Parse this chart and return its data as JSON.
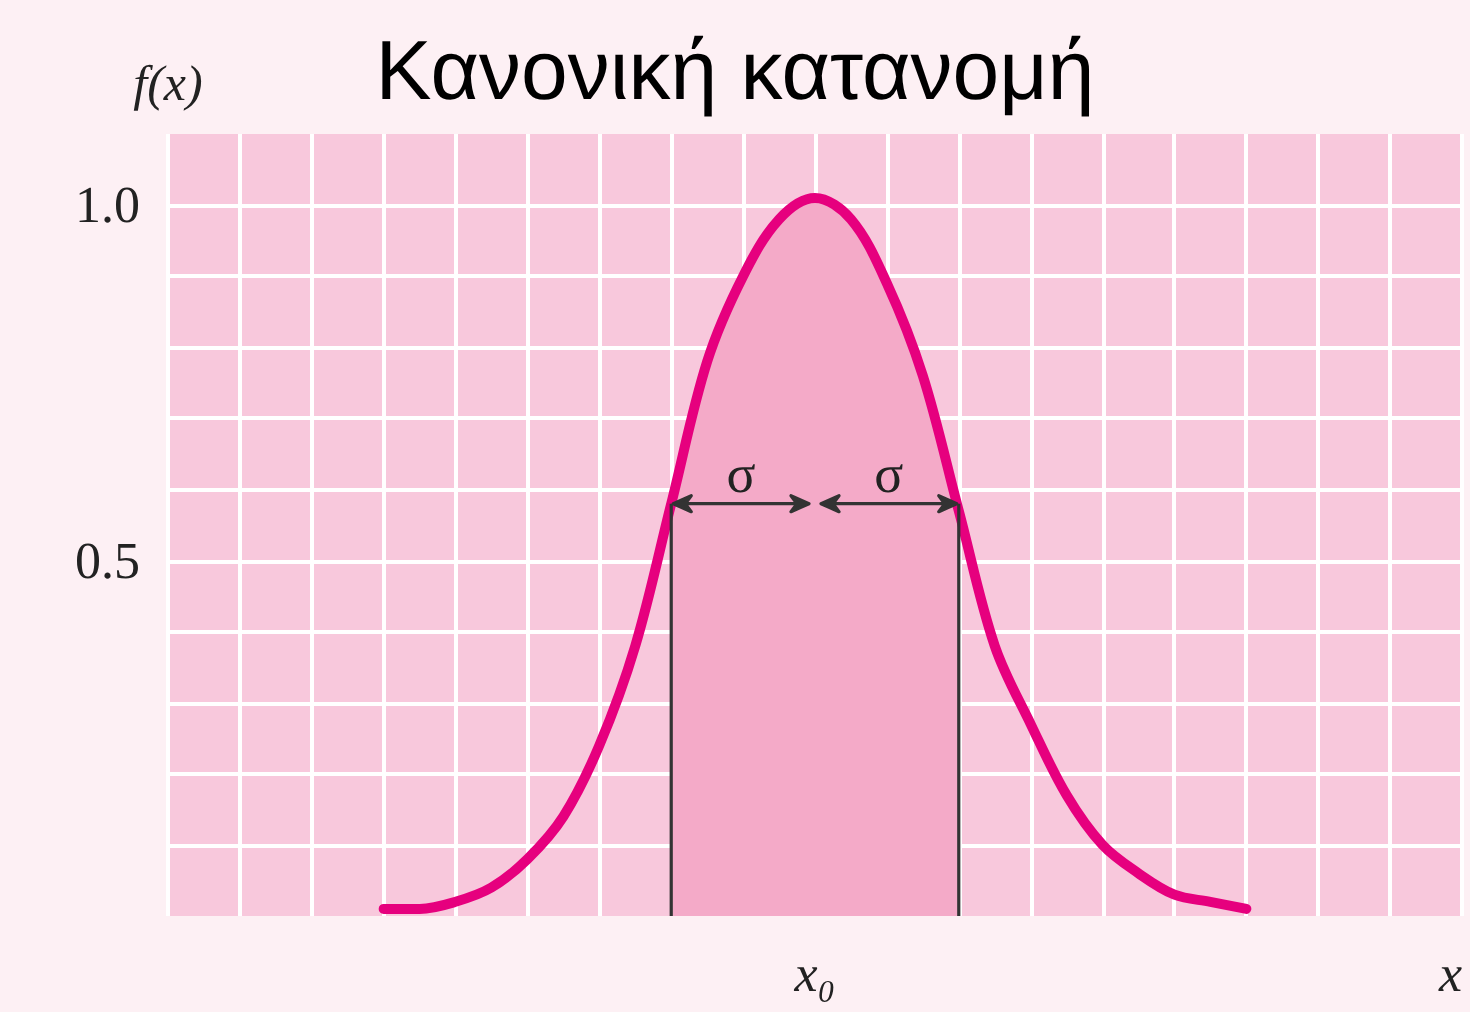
{
  "chart_data": {
    "type": "line",
    "title": "Κανονική κατανομή",
    "xlabel": "x",
    "ylabel": "f(x)",
    "categories": [
      null,
      null,
      null,
      null,
      null,
      null,
      null,
      null,
      null,
      null,
      null,
      null,
      null,
      null,
      null,
      null,
      null,
      null,
      "x₀",
      null,
      null,
      null,
      null,
      null,
      null,
      null,
      null,
      null,
      null,
      null,
      null,
      null,
      null,
      null,
      null,
      null,
      null
    ],
    "series": [
      {
        "color": "#e6007e",
        "values": [
          null,
          null,
          null,
          null,
          null,
          null,
          0.01,
          0.01,
          0.02,
          0.04,
          0.08,
          0.14,
          0.24,
          0.38,
          0.58,
          0.78,
          0.9,
          0.98,
          1.01,
          0.98,
          0.89,
          0.76,
          0.57,
          0.38,
          0.27,
          0.17,
          0.1,
          0.06,
          0.03,
          0.02,
          0.01,
          null,
          null,
          null,
          null,
          null,
          null
        ]
      },
      {
        "type": "area",
        "color": "#f4aac8",
        "values": [
          null,
          null,
          null,
          null,
          null,
          null,
          null,
          null,
          null,
          null,
          null,
          null,
          null,
          null,
          0.58,
          0.78,
          0.9,
          0.98,
          1.01,
          0.98,
          0.89,
          0.76,
          0.57,
          null,
          null,
          null,
          null,
          null,
          null,
          null,
          null,
          null,
          null,
          null,
          null,
          null,
          null
        ]
      }
    ],
    "ylim": [
      0,
      1.1
    ],
    "yticks": [
      {
        "value": 0.1,
        "label": null
      },
      {
        "value": 0.2,
        "label": null
      },
      {
        "value": 0.3,
        "label": null
      },
      {
        "value": 0.4,
        "label": null
      },
      0.5,
      {
        "value": 0.6,
        "label": null
      },
      {
        "value": 0.7,
        "label": null
      },
      {
        "value": 0.8,
        "label": null
      },
      {
        "value": 0.9,
        "label": null
      },
      {
        "value": 1,
        "label": "1.0"
      }
    ],
    "grid": true,
    "line_style": "solid",
    "annotations": [
      "σ",
      "σ"
    ]
  }
}
